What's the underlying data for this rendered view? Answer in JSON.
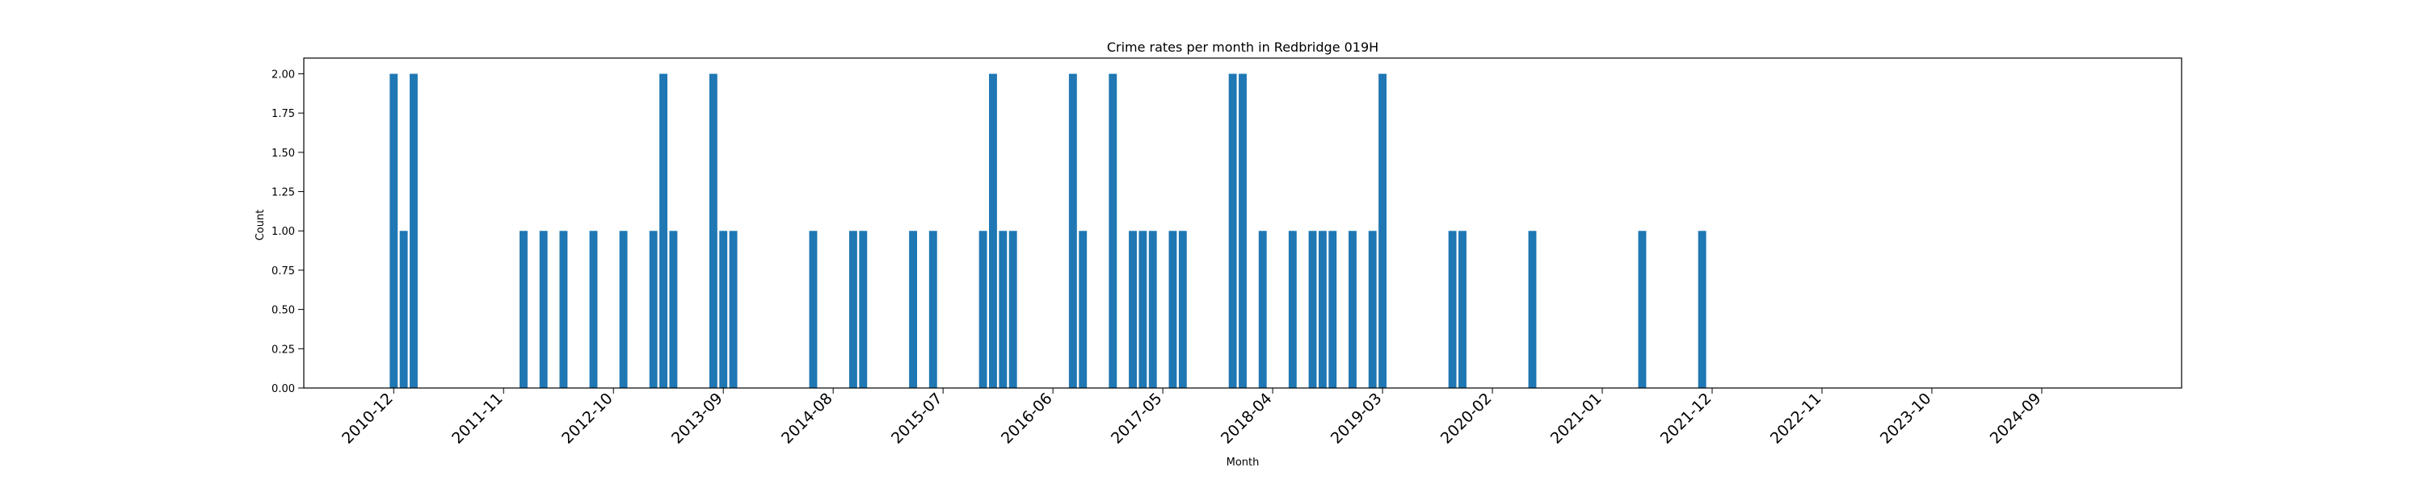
{
  "chart_data": {
    "type": "bar",
    "title": "Crime rates per month in Redbridge 019H",
    "xlabel": "Month",
    "ylabel": "Count",
    "ylim": [
      0,
      2.1
    ],
    "x_range": [
      "2010-03",
      "2025-11"
    ],
    "y_ticks": [
      "0.00",
      "0.25",
      "0.50",
      "0.75",
      "1.00",
      "1.25",
      "1.50",
      "1.75",
      "2.00"
    ],
    "x_ticks": [
      "2010-12",
      "2011-11",
      "2012-10",
      "2013-09",
      "2014-08",
      "2015-07",
      "2016-06",
      "2017-05",
      "2018-04",
      "2019-03",
      "2020-02",
      "2021-01",
      "2021-12",
      "2022-11",
      "2023-10",
      "2024-09"
    ],
    "months": [
      "2010-12",
      "2011-01",
      "2011-02",
      "2012-01",
      "2012-03",
      "2012-05",
      "2012-08",
      "2012-11",
      "2013-02",
      "2013-03",
      "2013-04",
      "2013-08",
      "2013-09",
      "2013-10",
      "2014-06",
      "2014-10",
      "2014-11",
      "2015-04",
      "2015-06",
      "2015-11",
      "2015-12",
      "2016-01",
      "2016-02",
      "2016-08",
      "2016-09",
      "2016-12",
      "2017-02",
      "2017-03",
      "2017-04",
      "2017-06",
      "2017-07",
      "2017-12",
      "2018-01",
      "2018-03",
      "2018-06",
      "2018-08",
      "2018-09",
      "2018-10",
      "2018-12",
      "2019-02",
      "2019-03",
      "2019-10",
      "2019-11",
      "2020-06",
      "2021-05",
      "2021-11"
    ],
    "values": [
      2,
      1,
      2,
      1,
      1,
      1,
      1,
      1,
      1,
      2,
      1,
      2,
      1,
      1,
      1,
      1,
      1,
      1,
      1,
      1,
      2,
      1,
      1,
      2,
      1,
      2,
      1,
      1,
      1,
      1,
      1,
      2,
      2,
      1,
      1,
      1,
      1,
      1,
      1,
      1,
      2,
      1,
      1,
      1,
      1,
      1
    ],
    "bar_color": "#1f77b4",
    "grid": false
  }
}
